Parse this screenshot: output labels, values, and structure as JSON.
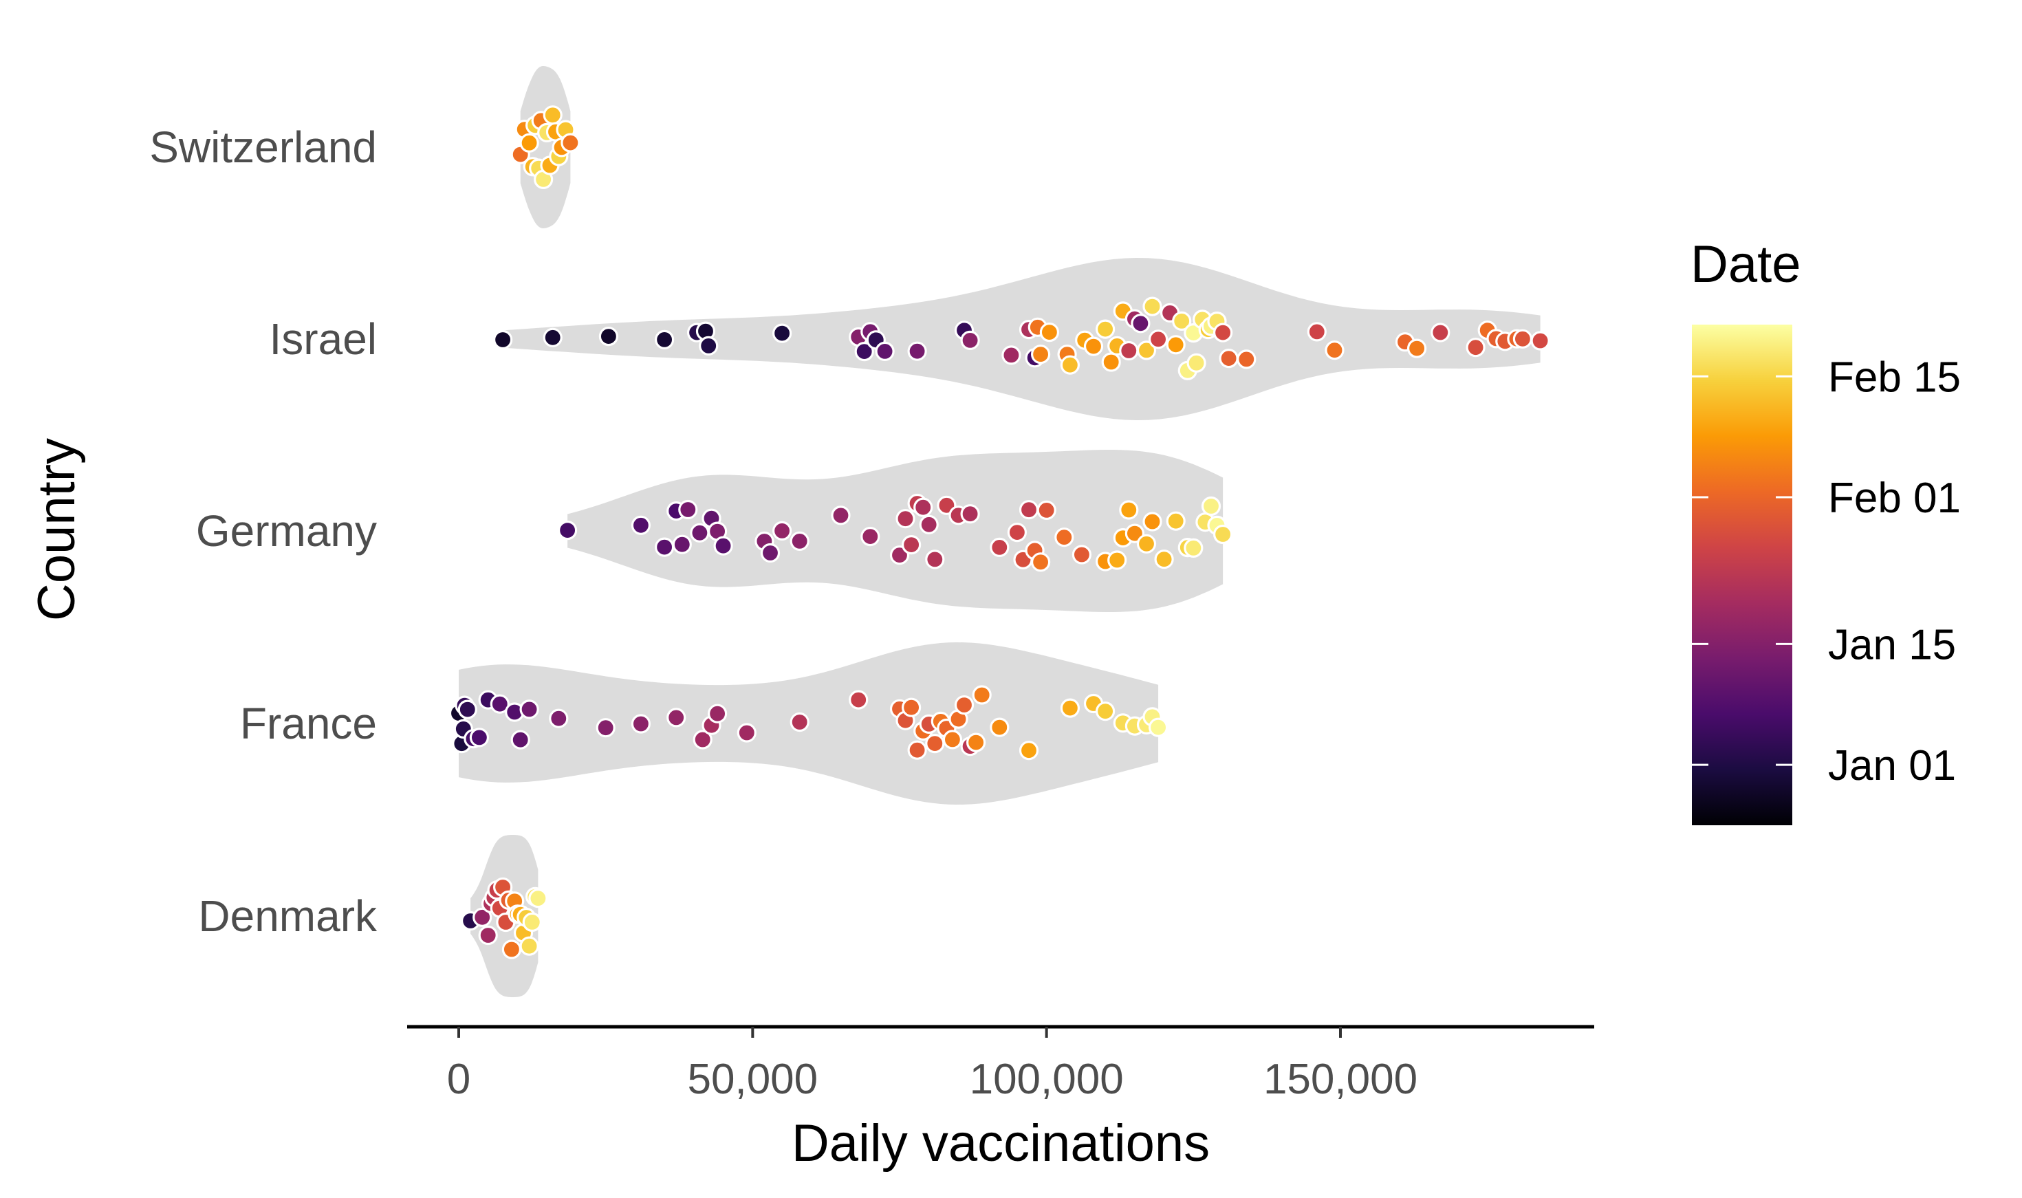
{
  "chart_data": {
    "type": "scatter",
    "subtype": "violin-with-jittered-points",
    "title": "",
    "xlabel": "Daily vaccinations",
    "ylabel": "Country",
    "xlim": [
      -8500,
      193000
    ],
    "x_ticks": [
      0,
      50000,
      100000,
      150000
    ],
    "x_tick_labels": [
      "0",
      "50,000",
      "100,000",
      "150,000"
    ],
    "categories": [
      "Switzerland",
      "Israel",
      "Germany",
      "France",
      "Denmark"
    ],
    "grid": false,
    "legend": {
      "title": "Date",
      "type": "colorbar",
      "placement": "right",
      "palette": "inferno",
      "colors": [
        "#000004",
        "#1b0c41",
        "#4a0c6b",
        "#781c6d",
        "#a52c60",
        "#cf4446",
        "#ed6925",
        "#fb9b06",
        "#f7d13d",
        "#fcffa4"
      ],
      "range_days": [
        -7,
        51
      ],
      "tick_days": [
        0,
        14,
        31,
        45
      ],
      "tick_labels": [
        "Jan 01",
        "Jan 15",
        "Feb 01",
        "Feb 15"
      ]
    },
    "series": [
      {
        "name": "Switzerland",
        "points": [
          [
            10500,
            32
          ],
          [
            11200,
            36
          ],
          [
            12000,
            38
          ],
          [
            12600,
            41
          ],
          [
            13000,
            44
          ],
          [
            13600,
            46
          ],
          [
            14000,
            34
          ],
          [
            14400,
            48
          ],
          [
            15000,
            47
          ],
          [
            15500,
            40
          ],
          [
            16000,
            42
          ],
          [
            16500,
            39
          ],
          [
            17000,
            45
          ],
          [
            17500,
            37
          ],
          [
            18200,
            43
          ],
          [
            19000,
            33
          ]
        ]
      },
      {
        "name": "Israel",
        "points": [
          [
            7500,
            -3
          ],
          [
            16000,
            -2
          ],
          [
            25500,
            -3
          ],
          [
            35000,
            -2
          ],
          [
            40500,
            1
          ],
          [
            42000,
            -2
          ],
          [
            42500,
            0
          ],
          [
            55000,
            -1
          ],
          [
            68000,
            14
          ],
          [
            69000,
            4
          ],
          [
            70000,
            12
          ],
          [
            71000,
            2
          ],
          [
            72500,
            9
          ],
          [
            78000,
            12
          ],
          [
            86000,
            3
          ],
          [
            87000,
            15
          ],
          [
            94000,
            18
          ],
          [
            97000,
            20
          ],
          [
            98000,
            5
          ],
          [
            98500,
            33
          ],
          [
            99000,
            35
          ],
          [
            100500,
            37
          ],
          [
            103500,
            34
          ],
          [
            104000,
            42
          ],
          [
            106500,
            39
          ],
          [
            108000,
            37
          ],
          [
            110000,
            44
          ],
          [
            111000,
            37
          ],
          [
            112000,
            41
          ],
          [
            113000,
            40
          ],
          [
            114000,
            23
          ],
          [
            115000,
            18
          ],
          [
            116000,
            10
          ],
          [
            117000,
            43
          ],
          [
            118000,
            46
          ],
          [
            119000,
            25
          ],
          [
            121000,
            21
          ],
          [
            122000,
            38
          ],
          [
            123000,
            46
          ],
          [
            124000,
            49
          ],
          [
            125000,
            50
          ],
          [
            125500,
            48
          ],
          [
            126500,
            47
          ],
          [
            127500,
            44
          ],
          [
            128000,
            49
          ],
          [
            129000,
            47
          ],
          [
            130000,
            26
          ],
          [
            131000,
            30
          ],
          [
            134000,
            31
          ],
          [
            146000,
            25
          ],
          [
            149000,
            33
          ],
          [
            161000,
            31
          ],
          [
            163000,
            34
          ],
          [
            167000,
            24
          ],
          [
            173000,
            27
          ],
          [
            175000,
            32
          ],
          [
            176500,
            30
          ],
          [
            178000,
            29
          ],
          [
            180000,
            31
          ],
          [
            181000,
            28
          ],
          [
            184000,
            26
          ]
        ]
      },
      {
        "name": "Germany",
        "points": [
          [
            18500,
            5
          ],
          [
            31000,
            7
          ],
          [
            35000,
            8
          ],
          [
            37000,
            6
          ],
          [
            38000,
            10
          ],
          [
            39000,
            12
          ],
          [
            41000,
            11
          ],
          [
            43000,
            9
          ],
          [
            44000,
            13
          ],
          [
            45000,
            8
          ],
          [
            52000,
            14
          ],
          [
            53000,
            11
          ],
          [
            55000,
            16
          ],
          [
            58000,
            15
          ],
          [
            65000,
            16
          ],
          [
            70000,
            17
          ],
          [
            75000,
            18
          ],
          [
            76000,
            21
          ],
          [
            77000,
            22
          ],
          [
            78000,
            23
          ],
          [
            79000,
            20
          ],
          [
            80000,
            19
          ],
          [
            81000,
            21
          ],
          [
            83000,
            24
          ],
          [
            85000,
            22
          ],
          [
            87000,
            20
          ],
          [
            92000,
            24
          ],
          [
            95000,
            25
          ],
          [
            96000,
            27
          ],
          [
            97000,
            23
          ],
          [
            98000,
            30
          ],
          [
            99000,
            33
          ],
          [
            100000,
            28
          ],
          [
            103000,
            32
          ],
          [
            106000,
            29
          ],
          [
            110000,
            37
          ],
          [
            112000,
            40
          ],
          [
            113000,
            38
          ],
          [
            114000,
            39
          ],
          [
            115000,
            36
          ],
          [
            117000,
            41
          ],
          [
            118000,
            37
          ],
          [
            120000,
            42
          ],
          [
            122000,
            43
          ],
          [
            124000,
            45
          ],
          [
            125000,
            48
          ],
          [
            127000,
            47
          ],
          [
            128000,
            49
          ],
          [
            129000,
            50
          ],
          [
            130000,
            46
          ]
        ]
      },
      {
        "name": "France",
        "points": [
          [
            0,
            -3
          ],
          [
            500,
            -1
          ],
          [
            800,
            1
          ],
          [
            1000,
            3
          ],
          [
            1500,
            2
          ],
          [
            2500,
            5
          ],
          [
            3500,
            6
          ],
          [
            5000,
            4
          ],
          [
            7000,
            8
          ],
          [
            9500,
            7
          ],
          [
            10500,
            9
          ],
          [
            12000,
            11
          ],
          [
            17000,
            13
          ],
          [
            25000,
            14
          ],
          [
            31000,
            15
          ],
          [
            37000,
            16
          ],
          [
            41500,
            18
          ],
          [
            43000,
            19
          ],
          [
            44000,
            17
          ],
          [
            49000,
            18
          ],
          [
            58000,
            21
          ],
          [
            68000,
            24
          ],
          [
            75000,
            30
          ],
          [
            76000,
            28
          ],
          [
            77000,
            31
          ],
          [
            78000,
            29
          ],
          [
            79000,
            32
          ],
          [
            80000,
            27
          ],
          [
            81000,
            30
          ],
          [
            82000,
            33
          ],
          [
            83000,
            31
          ],
          [
            84000,
            34
          ],
          [
            85000,
            32
          ],
          [
            86000,
            30
          ],
          [
            87000,
            22
          ],
          [
            88000,
            35
          ],
          [
            89000,
            34
          ],
          [
            92000,
            36
          ],
          [
            97000,
            39
          ],
          [
            104000,
            40
          ],
          [
            108000,
            42
          ],
          [
            110000,
            44
          ],
          [
            113000,
            46
          ],
          [
            115000,
            47
          ],
          [
            117000,
            48
          ],
          [
            118000,
            49
          ],
          [
            119000,
            50
          ]
        ]
      },
      {
        "name": "Denmark",
        "points": [
          [
            2000,
            1
          ],
          [
            4000,
            16
          ],
          [
            5000,
            18
          ],
          [
            5500,
            20
          ],
          [
            6000,
            22
          ],
          [
            6500,
            24
          ],
          [
            7000,
            26
          ],
          [
            7500,
            28
          ],
          [
            8000,
            27
          ],
          [
            8500,
            30
          ],
          [
            9000,
            33
          ],
          [
            9500,
            35
          ],
          [
            10000,
            38
          ],
          [
            10500,
            40
          ],
          [
            11000,
            42
          ],
          [
            11500,
            44
          ],
          [
            12000,
            46
          ],
          [
            12500,
            48
          ],
          [
            13000,
            47
          ],
          [
            13500,
            49
          ]
        ]
      }
    ]
  }
}
